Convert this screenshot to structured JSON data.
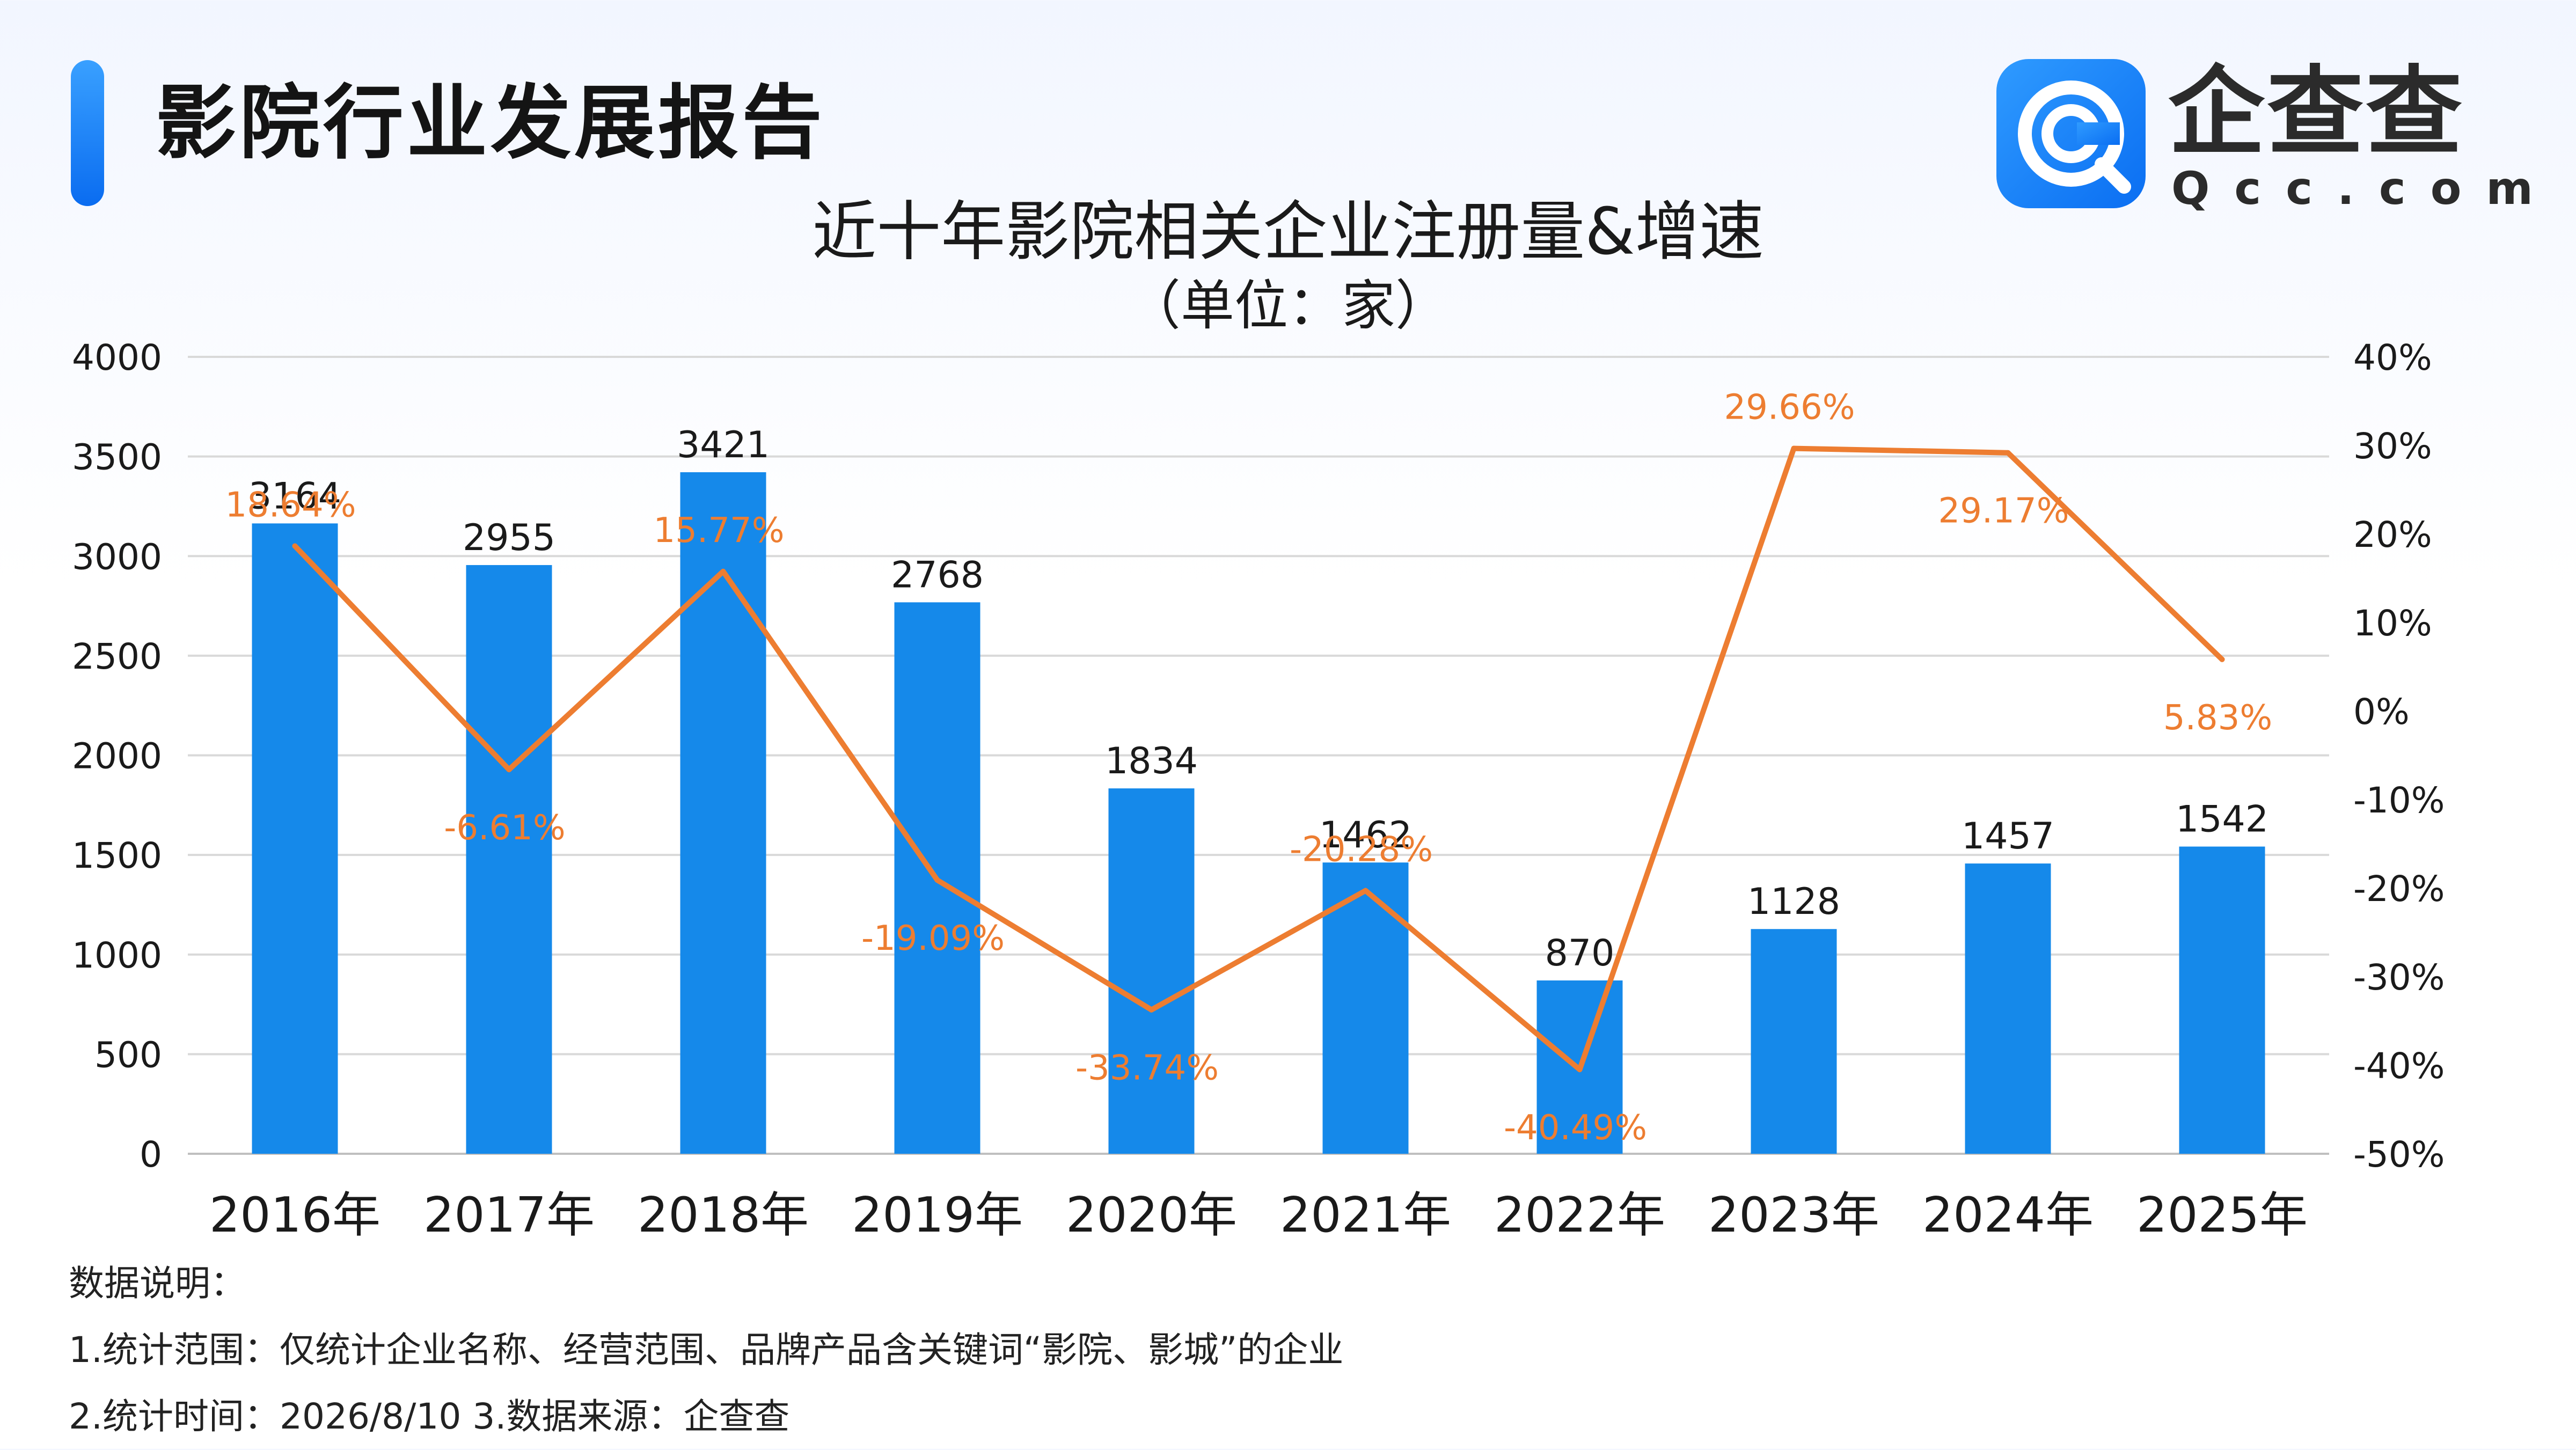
{
  "report": {
    "title": "影院行业发展报告"
  },
  "logo": {
    "name_cn": "企查查",
    "name_en": "Qcc.com",
    "icon": "qcc-logo-icon"
  },
  "colors": {
    "bar": "#1589EA",
    "line": "#ED7D31",
    "accent": "#1676F3"
  },
  "chart_data": {
    "type": "bar",
    "title": "近十年影院相关企业注册量&增速",
    "subtitle": "（单位：家）",
    "categories": [
      "2016年",
      "2017年",
      "2018年",
      "2019年",
      "2020年",
      "2021年",
      "2022年",
      "2023年",
      "2024年",
      "2025年"
    ],
    "series": [
      {
        "type": "bar",
        "axis": "left",
        "values": [
          3164,
          2955,
          3421,
          2768,
          1834,
          1462,
          870,
          1128,
          1457,
          1542
        ],
        "labels": [
          "3164",
          "2955",
          "3421",
          "2768",
          "1834",
          "1462",
          "870",
          "1128",
          "1457",
          "1542"
        ]
      },
      {
        "type": "line",
        "axis": "right",
        "values": [
          18.64,
          -6.61,
          15.77,
          -19.09,
          -33.74,
          -20.28,
          -40.49,
          29.66,
          29.17,
          5.83
        ],
        "labels": [
          "18.64%",
          "-6.61%",
          "15.77%",
          "-19.09%",
          "-33.74%",
          "-20.28%",
          "-40.49%",
          "29.66%",
          "29.17%",
          "5.83%"
        ]
      }
    ],
    "y_left": {
      "range": [
        0,
        4000
      ],
      "ticks": [
        "0",
        "500",
        "1000",
        "1500",
        "2000",
        "2500",
        "3000",
        "3500",
        "4000"
      ]
    },
    "y_right": {
      "range": [
        -50,
        40
      ],
      "ticks": [
        "-50%",
        "-40%",
        "-30%",
        "-20%",
        "-10%",
        "0%",
        "10%",
        "20%",
        "30%",
        "40%"
      ]
    },
    "grid": true,
    "legend": "none"
  },
  "notes": {
    "heading": "数据说明：",
    "line1": "1.统计范围：仅统计企业名称、经营范围、品牌产品含关键词“影院、影城”的企业",
    "line2": "2.统计时间：2026/8/10  3.数据来源：企查查"
  }
}
